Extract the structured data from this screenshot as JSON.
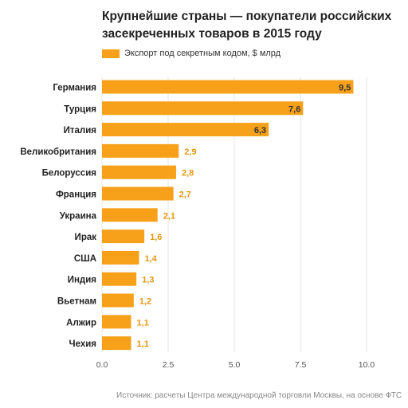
{
  "title": "Крупнейшие страны — покупатели российских засекреченных товаров в 2015 году",
  "source": "Источник: расчеты Центра международной торговли Москвы, на основе ФТС",
  "colors": {
    "bar": "#F7A11A",
    "value_label": "#E8960F",
    "inside_label": "#333333",
    "grid": "#e6e6e6"
  },
  "chart_data": {
    "type": "bar",
    "orientation": "horizontal",
    "legend_position": "top-left",
    "grid": true,
    "xlim": [
      0,
      10
    ],
    "xticks": [
      "0.0",
      "2.5",
      "5.0",
      "7.5",
      "10.0"
    ],
    "categories": [
      "Германия",
      "Турция",
      "Италия",
      "Великобритания",
      "Белоруссия",
      "Франция",
      "Украина",
      "Ирак",
      "США",
      "Индия",
      "Вьетнам",
      "Алжир",
      "Чехия"
    ],
    "series": [
      {
        "name": "Экспорт под секретным кодом, $ млрд",
        "values": [
          9.5,
          7.6,
          6.3,
          2.9,
          2.8,
          2.7,
          2.1,
          1.6,
          1.4,
          1.3,
          1.2,
          1.1,
          1.1
        ],
        "labels": [
          "9,5",
          "7,6",
          "6,3",
          "2,9",
          "2,8",
          "2,7",
          "2,1",
          "1,6",
          "1,4",
          "1,3",
          "1,2",
          "1,1",
          "1,1"
        ]
      }
    ]
  }
}
